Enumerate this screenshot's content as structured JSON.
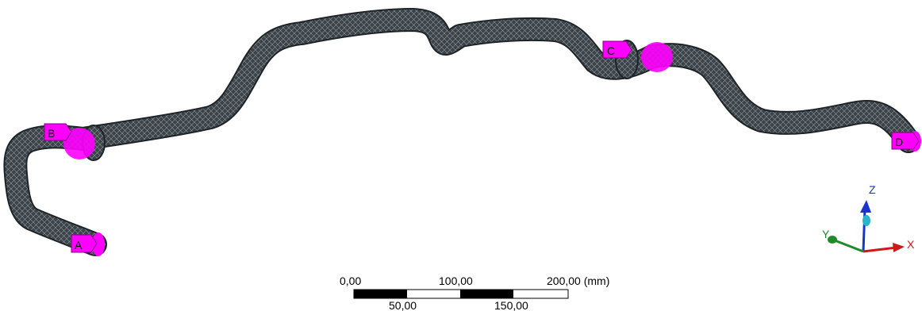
{
  "model": {
    "mesh_color": "#3b4248",
    "highlight_color": "#ff00ff"
  },
  "markers": [
    {
      "id": "marker-a",
      "label": "A"
    },
    {
      "id": "marker-b",
      "label": "B"
    },
    {
      "id": "marker-c",
      "label": "C"
    },
    {
      "id": "marker-d",
      "label": "D"
    }
  ],
  "triad": {
    "z_label": "Z",
    "y_label": "Y",
    "x_label": "X",
    "z_color": "#1a33cc",
    "y_color": "#1e8a2a",
    "x_color": "#cc1a1a"
  },
  "scale_bar": {
    "top_labels": [
      "0,00",
      "100,00",
      "200,00 (mm)"
    ],
    "bottom_labels": [
      "50,00",
      "150,00"
    ]
  }
}
